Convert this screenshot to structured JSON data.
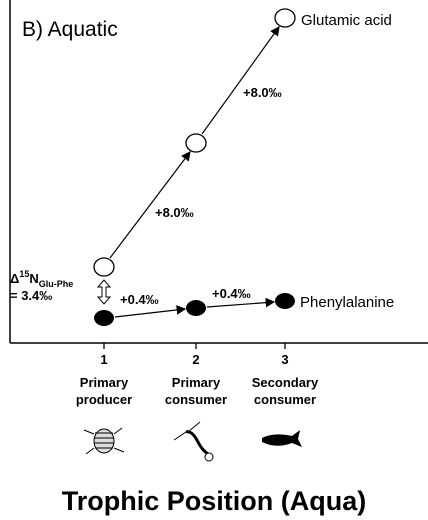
{
  "panel_label": "B) Aquatic",
  "compounds": [
    "Glutamic acid",
    "Phenylalanine"
  ],
  "glu_steps": [
    "+8.0‰",
    "+8.0‰"
  ],
  "phe_steps": [
    "+0.4‰",
    "+0.4‰"
  ],
  "offset": {
    "delta": "Δ",
    "isotope": "15",
    "element": "N",
    "subscript": "Glu-Phe",
    "value": "= 3.4‰"
  },
  "x_axis": {
    "title": "Trophic Position (Aqua)",
    "ticks": [
      {
        "number": "1",
        "lines": [
          "Primary",
          "producer"
        ]
      },
      {
        "number": "2",
        "lines": [
          "Primary",
          "consumer"
        ]
      },
      {
        "number": "3",
        "lines": [
          "Secondary",
          "consumer"
        ]
      }
    ]
  }
}
